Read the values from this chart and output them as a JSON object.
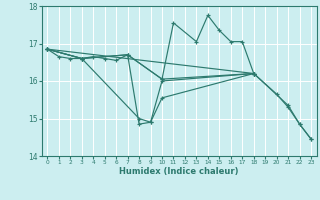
{
  "xlabel": "Humidex (Indice chaleur)",
  "bg_color": "#cceef0",
  "line_color": "#2d7a6e",
  "grid_color": "#ffffff",
  "ylim": [
    14,
    18
  ],
  "xlim": [
    -0.5,
    23.5
  ],
  "yticks": [
    14,
    15,
    16,
    17,
    18
  ],
  "xticks": [
    0,
    1,
    2,
    3,
    4,
    5,
    6,
    7,
    8,
    9,
    10,
    11,
    12,
    13,
    14,
    15,
    16,
    17,
    18,
    19,
    20,
    21,
    22,
    23
  ],
  "series": [
    {
      "x": [
        0,
        1,
        2,
        3,
        4,
        5,
        6,
        7,
        10,
        11,
        13,
        14,
        15,
        16,
        17,
        18,
        21,
        22,
        23
      ],
      "y": [
        16.85,
        16.65,
        16.6,
        16.6,
        16.65,
        16.6,
        16.55,
        16.7,
        16.05,
        17.55,
        17.05,
        17.75,
        17.35,
        17.05,
        17.05,
        16.2,
        15.35,
        14.85,
        14.45
      ]
    },
    {
      "x": [
        0,
        3,
        7,
        10,
        18
      ],
      "y": [
        16.85,
        16.6,
        16.7,
        16.05,
        16.2
      ]
    },
    {
      "x": [
        0,
        3,
        7,
        8,
        9,
        10,
        18
      ],
      "y": [
        16.85,
        16.6,
        16.7,
        14.85,
        14.9,
        16.0,
        16.2
      ]
    },
    {
      "x": [
        0,
        3,
        8,
        9,
        10,
        18
      ],
      "y": [
        16.85,
        16.6,
        15.0,
        14.9,
        15.55,
        16.2
      ]
    },
    {
      "x": [
        0,
        18,
        20,
        21,
        22,
        23
      ],
      "y": [
        16.85,
        16.2,
        15.65,
        15.3,
        14.85,
        14.45
      ]
    }
  ]
}
